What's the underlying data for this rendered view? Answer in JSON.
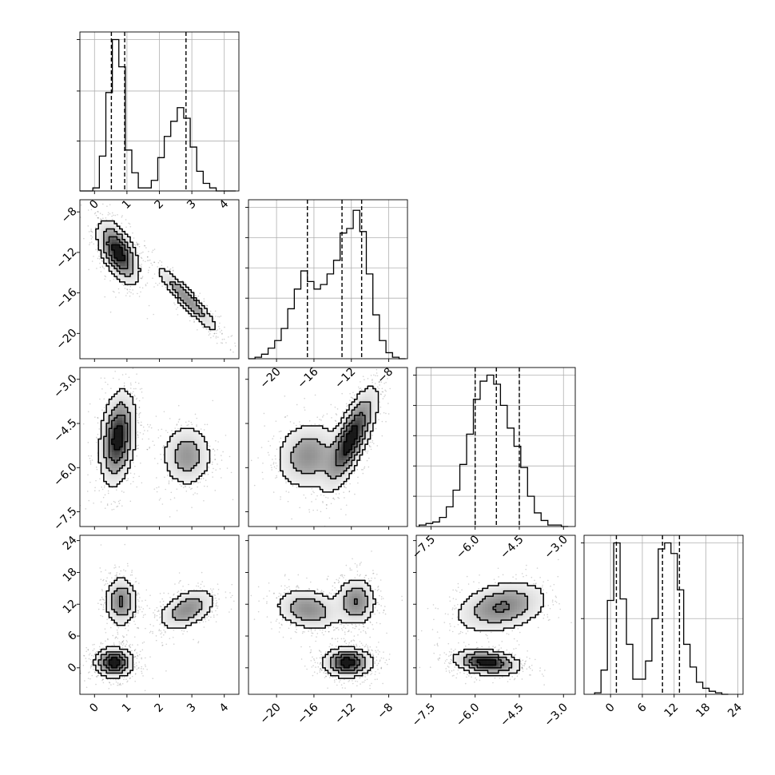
{
  "figure": {
    "background": "#ffffff",
    "frame_color": "#000000",
    "grid_color": "#b0b0b0",
    "quantile_line_style": "dashed",
    "hist_color": "#000000",
    "density_colormap": [
      "#ffffff",
      "#000000"
    ]
  },
  "chart_data": [
    {
      "type": "area",
      "panel": "diag-0",
      "title": "",
      "xlabel": "",
      "ylabel": "",
      "grid": true,
      "xlim": [
        -0.45,
        4.45
      ],
      "ylim": [
        0,
        1.05
      ],
      "x_ticks": [
        "0",
        "1",
        "2",
        "3",
        "4"
      ],
      "x_tick_values": [
        0,
        1,
        2,
        3,
        4
      ],
      "y_tick_values": [
        0.33,
        0.66,
        1.0
      ],
      "y_tick_labels_visible": false,
      "bin_edges": [
        -0.45,
        -0.25,
        -0.05,
        0.15,
        0.35,
        0.55,
        0.75,
        0.95,
        1.15,
        1.35,
        1.55,
        1.75,
        1.95,
        2.15,
        2.35,
        2.55,
        2.75,
        2.95,
        3.15,
        3.35,
        3.55,
        3.75,
        3.95,
        4.15,
        4.35
      ],
      "values": [
        0.0,
        0.0,
        0.02,
        0.23,
        0.65,
        1.0,
        0.82,
        0.27,
        0.12,
        0.02,
        0.02,
        0.07,
        0.22,
        0.36,
        0.46,
        0.55,
        0.48,
        0.29,
        0.13,
        0.05,
        0.02,
        0.0,
        0.0,
        0.0
      ],
      "quantiles": [
        0.52,
        0.93,
        2.82
      ]
    },
    {
      "type": "area",
      "panel": "diag-1",
      "title": "",
      "xlabel": "",
      "ylabel": "",
      "grid": true,
      "xlim": [
        -23.0,
        -6.0
      ],
      "ylim": [
        0,
        1.05
      ],
      "x_ticks": [
        "−20",
        "−16",
        "−12",
        "−8"
      ],
      "x_tick_values": [
        -20,
        -16,
        -12,
        -8
      ],
      "y_tick_values": [
        0.2,
        0.4,
        0.6,
        0.8,
        1.0
      ],
      "y_tick_labels_visible": false,
      "bin_edges": [
        -23.0,
        -22.3,
        -21.6,
        -20.9,
        -20.2,
        -19.5,
        -18.8,
        -18.1,
        -17.4,
        -16.7,
        -16.0,
        -15.3,
        -14.6,
        -13.9,
        -13.2,
        -12.5,
        -11.8,
        -11.1,
        -10.4,
        -9.7,
        -9.0,
        -8.3,
        -7.6,
        -6.9,
        -6.2
      ],
      "values": [
        0.0,
        0.01,
        0.03,
        0.07,
        0.12,
        0.2,
        0.33,
        0.46,
        0.58,
        0.51,
        0.46,
        0.49,
        0.56,
        0.65,
        0.83,
        0.86,
        0.98,
        0.84,
        0.56,
        0.29,
        0.12,
        0.04,
        0.01,
        0.0
      ],
      "quantiles": [
        -16.7,
        -13.0,
        -10.9
      ]
    },
    {
      "type": "area",
      "panel": "diag-2",
      "title": "",
      "xlabel": "",
      "ylabel": "",
      "grid": true,
      "xlim": [
        -8.0,
        -2.6
      ],
      "ylim": [
        0,
        1.05
      ],
      "x_ticks": [
        "−7.5",
        "−6.0",
        "−4.5",
        "−3.0"
      ],
      "x_tick_values": [
        -7.5,
        -6.0,
        -4.5,
        -3.0
      ],
      "y_tick_values": [
        0.2,
        0.4,
        0.6,
        0.8,
        1.0
      ],
      "y_tick_labels_visible": false,
      "bin_edges": [
        -7.9,
        -7.67,
        -7.44,
        -7.21,
        -6.98,
        -6.75,
        -6.52,
        -6.29,
        -6.06,
        -5.83,
        -5.6,
        -5.37,
        -5.14,
        -4.91,
        -4.68,
        -4.45,
        -4.22,
        -3.99,
        -3.76,
        -3.53,
        -3.3,
        -3.07,
        -2.84
      ],
      "values": [
        0.01,
        0.02,
        0.03,
        0.06,
        0.13,
        0.24,
        0.41,
        0.61,
        0.84,
        0.96,
        1.0,
        0.94,
        0.8,
        0.65,
        0.53,
        0.39,
        0.2,
        0.09,
        0.04,
        0.01,
        0.01,
        0.0
      ],
      "quantiles": [
        -6.0,
        -5.28,
        -4.5
      ]
    },
    {
      "type": "area",
      "panel": "diag-3",
      "title": "",
      "xlabel": "",
      "ylabel": "",
      "grid": true,
      "xlim": [
        -5.0,
        25.0
      ],
      "ylim": [
        0,
        1.05
      ],
      "x_ticks": [
        "0",
        "6",
        "12",
        "18",
        "24"
      ],
      "x_tick_values": [
        0,
        6,
        12,
        18,
        24
      ],
      "y_tick_values": [
        0.5,
        1.0
      ],
      "y_tick_labels_visible": false,
      "bin_edges": [
        -3.0,
        -1.8,
        -0.6,
        0.6,
        1.8,
        3.0,
        4.2,
        5.4,
        6.6,
        7.8,
        9.0,
        10.2,
        11.4,
        12.6,
        13.8,
        15.0,
        16.2,
        17.4,
        18.6,
        19.8,
        21.0,
        22.2
      ],
      "values": [
        0.01,
        0.16,
        0.62,
        1.0,
        0.63,
        0.33,
        0.1,
        0.1,
        0.22,
        0.5,
        0.96,
        1.0,
        0.93,
        0.69,
        0.33,
        0.18,
        0.08,
        0.04,
        0.02,
        0.01,
        0.0
      ],
      "quantiles": [
        1.1,
        9.8,
        13.0
      ]
    },
    {
      "type": "heatmap",
      "panel": "pair-0-1",
      "title": "",
      "xlabel": "",
      "ylabel": "",
      "grid": false,
      "xlim": [
        -0.45,
        4.45
      ],
      "ylim": [
        -22.5,
        -6.8
      ],
      "x_ticks": [
        "0",
        "1",
        "2",
        "3",
        "4"
      ],
      "x_tick_labels_visible": false,
      "y_ticks": [
        "−8",
        "−12",
        "−16",
        "−20"
      ],
      "y_tick_values": [
        -8,
        -12,
        -16,
        -20
      ],
      "modes": [
        {
          "cx": 0.73,
          "cy": -12.0,
          "sx": 0.32,
          "sy": 1.55,
          "rho": -0.55,
          "w": 1.0
        },
        {
          "cx": 2.85,
          "cy": -16.6,
          "sx": 0.5,
          "sy": 1.7,
          "rho": -0.93,
          "w": 0.55
        }
      ],
      "contour_levels": [
        0.12,
        0.33,
        0.6,
        0.86
      ]
    },
    {
      "type": "heatmap",
      "panel": "pair-0-2",
      "title": "",
      "xlabel": "",
      "ylabel": "",
      "grid": false,
      "xlim": [
        -0.45,
        4.45
      ],
      "ylim": [
        -8.0,
        -2.6
      ],
      "x_ticks": [
        "0",
        "1",
        "2",
        "3",
        "4"
      ],
      "x_tick_labels_visible": false,
      "y_ticks": [
        "−3.0",
        "−4.5",
        "−6.0",
        "−7.5"
      ],
      "y_tick_values": [
        -3.0,
        -4.5,
        -6.0,
        -7.5
      ],
      "modes": [
        {
          "cx": 0.72,
          "cy": -5.0,
          "sx": 0.28,
          "sy": 0.8,
          "rho": 0.25,
          "w": 1.0
        },
        {
          "cx": 2.85,
          "cy": -5.6,
          "sx": 0.4,
          "sy": 0.55,
          "rho": 0.0,
          "w": 0.5
        }
      ],
      "contour_levels": [
        0.12,
        0.33,
        0.6,
        0.86
      ]
    },
    {
      "type": "heatmap",
      "panel": "pair-0-3",
      "title": "",
      "xlabel": "",
      "ylabel": "",
      "grid": false,
      "xlim": [
        -0.45,
        4.45
      ],
      "ylim": [
        -5.0,
        25.0
      ],
      "x_ticks": [
        "0",
        "1",
        "2",
        "3",
        "4"
      ],
      "x_tick_values": [
        0,
        1,
        2,
        3,
        4
      ],
      "y_ticks": [
        "24",
        "18",
        "12",
        "6",
        "0"
      ],
      "y_tick_values": [
        24,
        18,
        12,
        6,
        0
      ],
      "modes": [
        {
          "cx": 0.82,
          "cy": 12.5,
          "sx": 0.25,
          "sy": 2.4,
          "rho": 0.0,
          "w": 0.62
        },
        {
          "cx": 2.85,
          "cy": 11.0,
          "sx": 0.45,
          "sy": 2.0,
          "rho": 0.45,
          "w": 0.55
        },
        {
          "cx": 0.6,
          "cy": 1.0,
          "sx": 0.3,
          "sy": 1.4,
          "rho": 0.0,
          "w": 1.0
        }
      ],
      "contour_levels": [
        0.12,
        0.33,
        0.6,
        0.86
      ]
    },
    {
      "type": "heatmap",
      "panel": "pair-1-2",
      "title": "",
      "xlabel": "",
      "ylabel": "",
      "grid": false,
      "xlim": [
        -23.0,
        -6.0
      ],
      "ylim": [
        -8.0,
        -2.6
      ],
      "x_ticks": [
        "−20",
        "−16",
        "−12",
        "−8"
      ],
      "x_tick_labels_visible": false,
      "y_ticks": [
        "−3.0",
        "−4.5",
        "−6.0",
        "−7.5"
      ],
      "y_tick_labels_visible": false,
      "modes": [
        {
          "cx": -12.0,
          "cy": -5.0,
          "sx": 1.4,
          "sy": 0.85,
          "rho": 0.75,
          "w": 1.0
        },
        {
          "cx": -16.6,
          "cy": -5.6,
          "sx": 1.8,
          "sy": 0.6,
          "rho": 0.1,
          "w": 0.55
        }
      ],
      "contour_levels": [
        0.12,
        0.33,
        0.6,
        0.86
      ]
    },
    {
      "type": "heatmap",
      "panel": "pair-1-3",
      "title": "",
      "xlabel": "",
      "ylabel": "",
      "grid": false,
      "xlim": [
        -23.0,
        -6.0
      ],
      "ylim": [
        -5.0,
        25.0
      ],
      "x_ticks": [
        "−20",
        "−16",
        "−12",
        "−8"
      ],
      "x_tick_values": [
        -20,
        -16,
        -12,
        -8
      ],
      "y_ticks": [
        "24",
        "18",
        "12",
        "6",
        "0"
      ],
      "y_tick_labels_visible": false,
      "modes": [
        {
          "cx": -11.5,
          "cy": 12.5,
          "sx": 1.1,
          "sy": 2.3,
          "rho": 0.0,
          "w": 0.6
        },
        {
          "cx": -16.6,
          "cy": 11.0,
          "sx": 1.8,
          "sy": 2.0,
          "rho": -0.2,
          "w": 0.55
        },
        {
          "cx": -12.4,
          "cy": 1.0,
          "sx": 1.3,
          "sy": 1.4,
          "rho": 0.0,
          "w": 1.0
        }
      ],
      "contour_levels": [
        0.12,
        0.33,
        0.6,
        0.86
      ]
    },
    {
      "type": "heatmap",
      "panel": "pair-2-3",
      "title": "",
      "xlabel": "",
      "ylabel": "",
      "grid": false,
      "xlim": [
        -8.0,
        -2.6
      ],
      "ylim": [
        -5.0,
        25.0
      ],
      "x_ticks": [
        "−7.5",
        "−6.0",
        "−4.5",
        "−3.0"
      ],
      "x_tick_values": [
        -7.5,
        -6.0,
        -4.5,
        -3.0
      ],
      "y_ticks": [
        "24",
        "18",
        "12",
        "6",
        "0"
      ],
      "y_tick_labels_visible": false,
      "modes": [
        {
          "cx": -5.1,
          "cy": 11.5,
          "sx": 0.8,
          "sy": 2.5,
          "rho": 0.3,
          "w": 0.62
        },
        {
          "cx": -5.6,
          "cy": 1.0,
          "sx": 0.55,
          "sy": 1.2,
          "rho": -0.25,
          "w": 1.0
        }
      ],
      "contour_levels": [
        0.12,
        0.33,
        0.6,
        0.86
      ]
    }
  ]
}
